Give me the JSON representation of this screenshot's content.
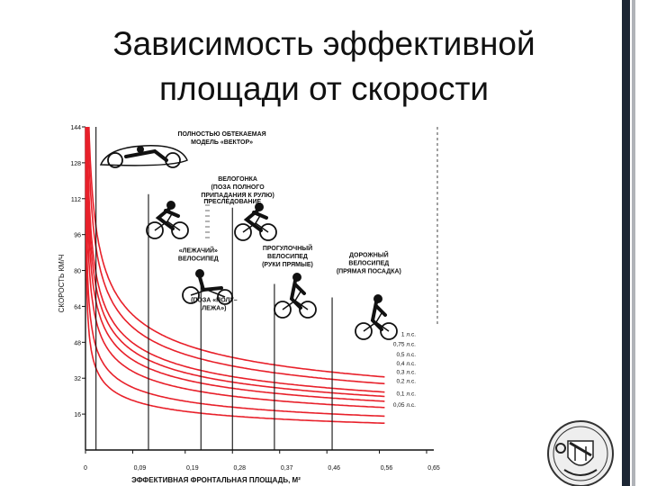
{
  "slide": {
    "title_line1": "Зависимость эффективной",
    "title_line2": "площади от скорости"
  },
  "chart_data": {
    "type": "line",
    "xlabel": "ЭФФЕКТИВНАЯ ФРОНТАЛЬНАЯ ПЛОЩАДЬ, М²",
    "ylabel": "СКОРОСТЬ КМ/Ч",
    "x_ticks": [
      "0",
      "0,09",
      "0,19",
      "0,28",
      "0,37",
      "0,46",
      "0,56",
      "0,65"
    ],
    "y_ticks": [
      "16",
      "32",
      "48",
      "64",
      "80",
      "96",
      "112",
      "128",
      "144"
    ],
    "xlim": [
      0,
      0.65
    ],
    "ylim": [
      0,
      144
    ],
    "line_color": "#e8202a",
    "series": [
      {
        "name": "1 л.с.",
        "k": 27,
        "label_y": 52
      },
      {
        "name": "0,75 л.с.",
        "k": 24.5,
        "label_y": 47.5
      },
      {
        "name": "0,5 л.с.",
        "k": 21.4,
        "label_y": 43
      },
      {
        "name": "0,4 л.с.",
        "k": 19.8,
        "label_y": 39
      },
      {
        "name": "0,3 л.с.",
        "k": 18.0,
        "label_y": 35
      },
      {
        "name": "0,2 л.с.",
        "k": 15.7,
        "label_y": 31
      },
      {
        "name": "0,1 л.с.",
        "k": 12.5,
        "label_y": 25.5
      },
      {
        "name": "0,05 л.с.",
        "k": 9.9,
        "label_y": 20.5
      }
    ],
    "markers": [
      {
        "x": 0.02,
        "y_top": 144,
        "label": [
          "ПОЛНОСТЬЮ ОБТЕКАЕМАЯ",
          "МОДЕЛЬ «ВЕКТОР»"
        ],
        "label_x": 0.26,
        "label_y": 140
      },
      {
        "x": 0.12,
        "y_top": 114,
        "label": [
          "ПРЕСЛЕДОВАНИЕ"
        ],
        "label_x": 0.28,
        "label_y": 110
      },
      {
        "x": 0.22,
        "y_top": 76,
        "label": [
          "«ЛЕЖАЧИЙ»",
          "ВЕЛОСИПЕД"
        ],
        "label_x": 0.215,
        "label_y": 88
      },
      {
        "x": 0.28,
        "y_top": 108,
        "label": [
          "ВЕЛОГОНКА",
          "(ПОЗА ПОЛНОГО",
          "ПРИПАДАНИЯ К РУЛЮ)"
        ],
        "label_x": 0.29,
        "label_y": 120
      },
      {
        "x": 0.36,
        "y_top": 74,
        "label": [
          "ПРОГУЛОЧНЫЙ",
          "ВЕЛОСИПЕД",
          "(РУКИ ПРЯМЫЕ)"
        ],
        "label_x": 0.385,
        "label_y": 89
      },
      {
        "x": 0.47,
        "y_top": 68,
        "label": [
          "ДОРОЖНЫЙ",
          "ВЕЛОСИПЕД",
          "(ПРЯМАЯ ПОСАДКА)"
        ],
        "label_x": 0.54,
        "label_y": 86
      }
    ],
    "extra_labels": [
      {
        "lines": [
          "(ПОЗА «ПОЛУ–",
          "ЛЕЖА»)"
        ],
        "x": 0.245,
        "y": 66
      }
    ]
  }
}
